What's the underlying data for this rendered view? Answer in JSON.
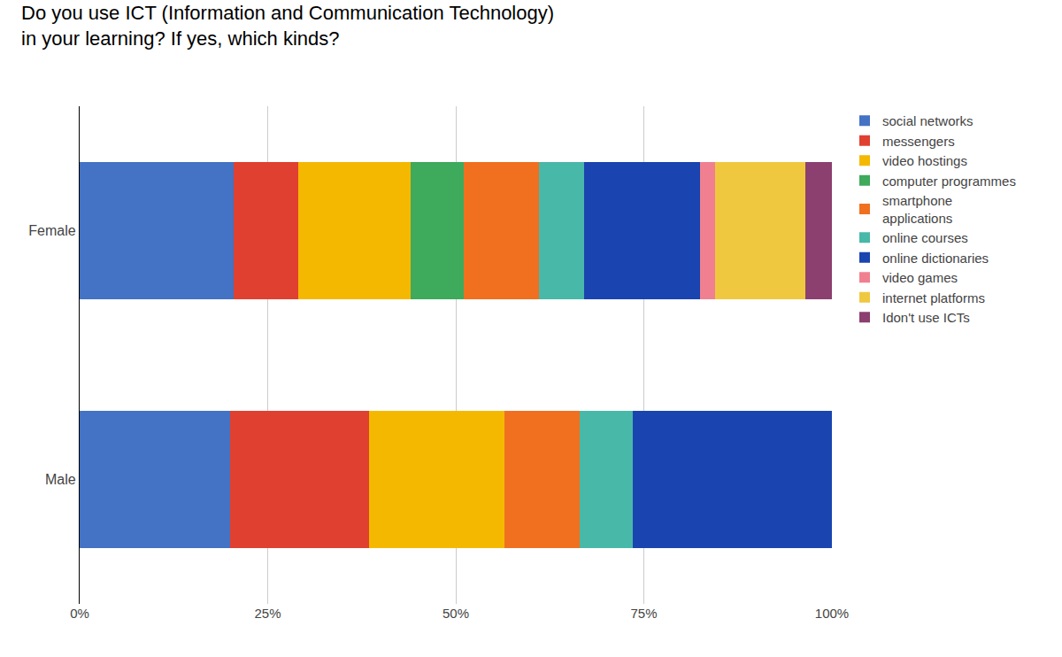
{
  "chart_data": {
    "type": "bar",
    "orientation": "horizontal",
    "stacked": true,
    "title": "Do you use ICT (Information and Communication Technology)\nin your learning? If yes, which kinds?",
    "categories": [
      "Male",
      "Female"
    ],
    "series": [
      {
        "name": "social networks",
        "color": "#4472C4",
        "values": [
          20.0,
          20.5
        ]
      },
      {
        "name": "messengers",
        "color": "#E04030",
        "values": [
          18.5,
          8.5
        ]
      },
      {
        "name": "video hostings",
        "color": "#F5B800",
        "values": [
          18.0,
          15.0
        ]
      },
      {
        "name": "computer programmes",
        "color": "#3DAA5C",
        "values": [
          0.0,
          7.0
        ]
      },
      {
        "name": "smartphone\napplications",
        "color": "#F07020",
        "values": [
          10.0,
          10.0
        ]
      },
      {
        "name": "online courses",
        "color": "#48B8A8",
        "values": [
          7.0,
          6.0
        ]
      },
      {
        "name": "online dictionaries",
        "color": "#1A44B0",
        "values": [
          26.5,
          15.5
        ]
      },
      {
        "name": "video games",
        "color": "#F08090",
        "values": [
          0.0,
          2.0
        ]
      },
      {
        "name": "internet platforms",
        "color": "#F0C840",
        "values": [
          0.0,
          12.0
        ]
      },
      {
        "name": "Idon't use ICTs",
        "color": "#8B4070",
        "values": [
          0.0,
          3.5
        ]
      }
    ],
    "xlim": [
      0,
      100
    ],
    "xticks": [
      {
        "value": 0,
        "label": "0%"
      },
      {
        "value": 25,
        "label": "25%"
      },
      {
        "value": 50,
        "label": "50%"
      },
      {
        "value": 75,
        "label": "75%"
      },
      {
        "value": 100,
        "label": "100%"
      }
    ],
    "grid": true,
    "legend": "right"
  }
}
